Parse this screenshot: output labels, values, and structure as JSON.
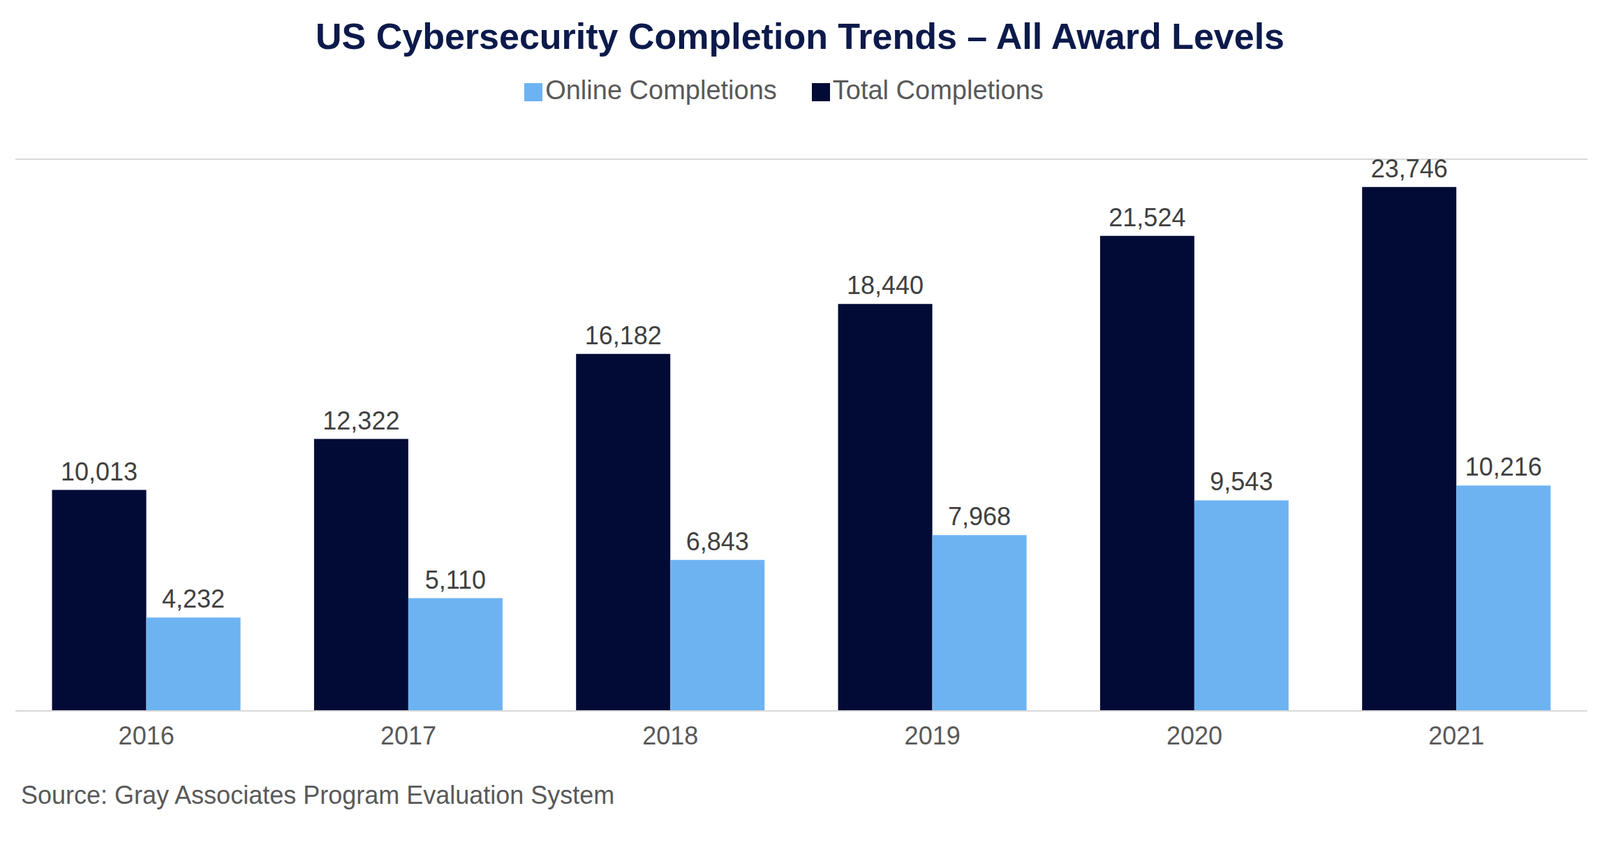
{
  "chart_data": {
    "type": "bar",
    "title": "US Cybersecurity Completion Trends – All Award Levels",
    "source": "Source: Gray Associates Program Evaluation System",
    "categories": [
      "2016",
      "2017",
      "2018",
      "2019",
      "2020",
      "2021"
    ],
    "series": [
      {
        "name": "Total Completions",
        "color": "#020b36",
        "values": [
          10013,
          12322,
          16182,
          18440,
          21524,
          23746
        ],
        "value_labels": [
          "10,013",
          "12,322",
          "16,182",
          "18,440",
          "21,524",
          "23,746"
        ]
      },
      {
        "name": "Online Completions",
        "color": "#6db3f2",
        "values": [
          4232,
          5110,
          6843,
          7968,
          9543,
          10216
        ],
        "value_labels": [
          "4,232",
          "5,110",
          "6,843",
          "7,968",
          "9,543",
          "10,216"
        ]
      }
    ],
    "ylim": [
      0,
      25000
    ],
    "yticks": [
      0,
      5000,
      10000,
      15000,
      20000,
      25000
    ],
    "grid": true,
    "legend": "top",
    "data_labels": true,
    "tick_labels": "x"
  }
}
